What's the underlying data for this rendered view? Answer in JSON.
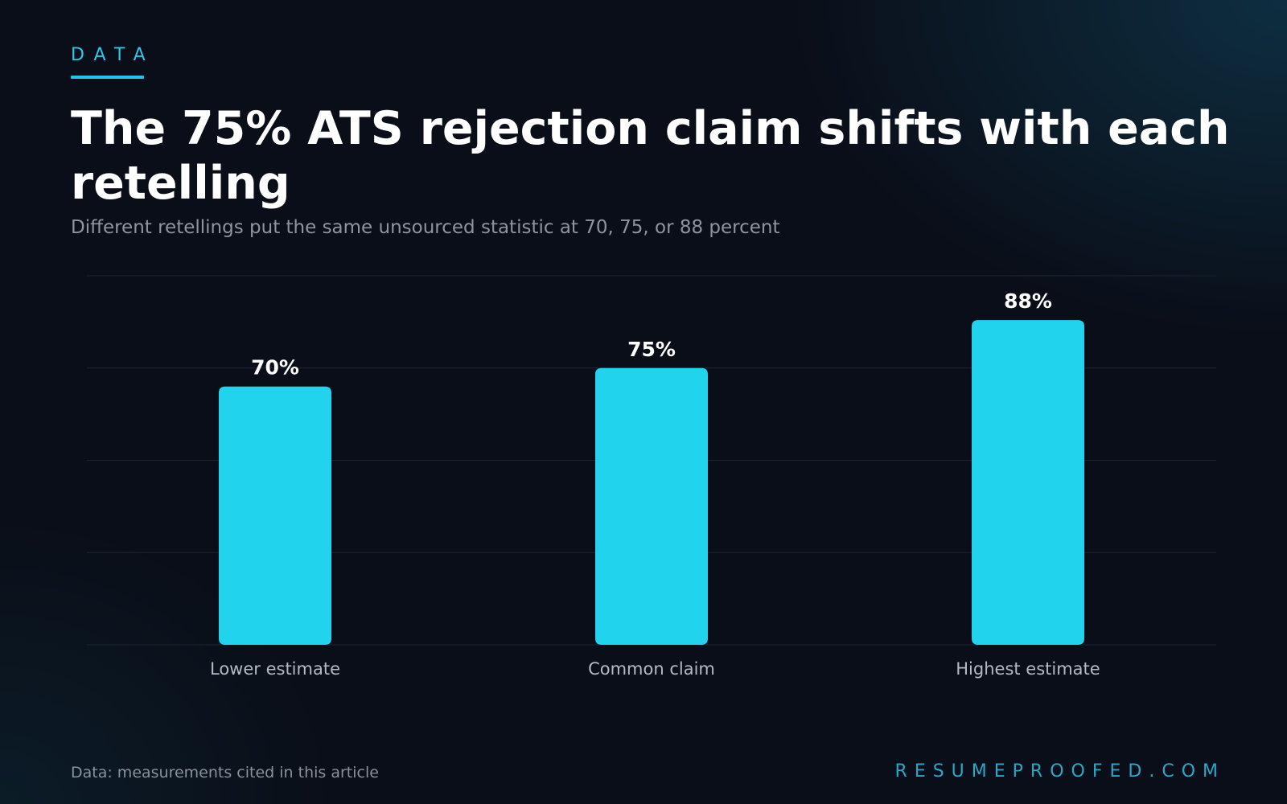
{
  "header": {
    "eyebrow": "DATA",
    "title": "The 75% ATS rejection claim shifts with each retelling",
    "subtitle": "Different retellings put the same unsourced statistic at 70, 75, or 88 percent"
  },
  "footer": {
    "source": "Data: measurements cited in this article",
    "brand": "RESUMEPROOFED.COM"
  },
  "colors": {
    "background": "#0a0e18",
    "accent": "#22d3ee",
    "gridline": "#1e2532",
    "tick_label": "#b4bac2",
    "data_label": "#ffffff"
  },
  "chart_data": {
    "type": "bar",
    "categories": [
      "Lower estimate",
      "Common claim",
      "Highest estimate"
    ],
    "values": [
      70,
      75,
      88
    ],
    "value_labels": [
      "70%",
      "75%",
      "88%"
    ],
    "ylim": [
      0,
      100
    ],
    "y_gridlines": [
      0,
      25,
      50,
      75,
      100
    ],
    "grid": true,
    "legend": "none"
  }
}
